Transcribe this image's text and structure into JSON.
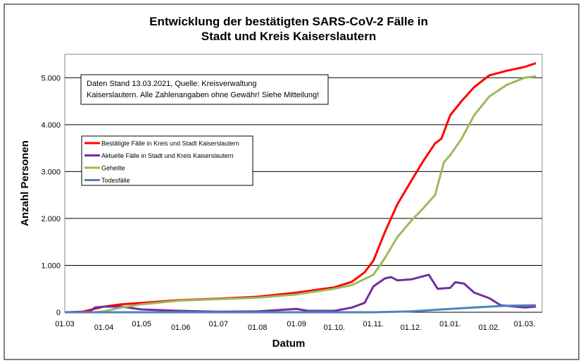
{
  "chart_data": {
    "type": "line",
    "title": [
      "Entwicklung der bestätigten SARS-CoV-2 Fälle in",
      "Stadt und Kreis Kaiserslautern"
    ],
    "xlabel": "Datum",
    "ylabel": "Anzahl Personen",
    "ylim": [
      0,
      5500
    ],
    "xlim": [
      "2020-03-01",
      "2021-03-15"
    ],
    "grid": "horizontal",
    "legend_position": "upper-left",
    "yticks": [
      {
        "v": 0,
        "label": "0"
      },
      {
        "v": 1000,
        "label": "1.000"
      },
      {
        "v": 2000,
        "label": "2.000"
      },
      {
        "v": 3000,
        "label": "3.000"
      },
      {
        "v": 4000,
        "label": "4.000"
      },
      {
        "v": 5000,
        "label": "5.000"
      }
    ],
    "xticks": [
      {
        "d": "2020-03-01",
        "label": "01.03"
      },
      {
        "d": "2020-04-01",
        "label": "01.04"
      },
      {
        "d": "2020-05-01",
        "label": "01.05"
      },
      {
        "d": "2020-06-01",
        "label": "01.06"
      },
      {
        "d": "2020-07-01",
        "label": "01.07"
      },
      {
        "d": "2020-08-01",
        "label": "01.08"
      },
      {
        "d": "2020-09-01",
        "label": "01.09"
      },
      {
        "d": "2020-10-01",
        "label": "01.10."
      },
      {
        "d": "2020-11-01",
        "label": "01.11."
      },
      {
        "d": "2020-12-01",
        "label": "01.12."
      },
      {
        "d": "2021-01-01",
        "label": "01.01."
      },
      {
        "d": "2021-02-01",
        "label": "01.02."
      },
      {
        "d": "2021-03-01",
        "label": "01.03."
      }
    ],
    "annotation": [
      "Daten Stand 13.03.2021, Quelle: Kreisverwaltung",
      "Kaiserslautern. Alle Zahlenangaben ohne Gewähr! Siehe Mitteilung!"
    ],
    "series": [
      {
        "name": "Bestätigte Fälle in Kreis und Stadt Kaiserslautern",
        "color": "#ff0000",
        "points": [
          [
            "2020-03-01",
            0
          ],
          [
            "2020-03-15",
            10
          ],
          [
            "2020-04-01",
            120
          ],
          [
            "2020-04-15",
            170
          ],
          [
            "2020-05-01",
            200
          ],
          [
            "2020-06-01",
            260
          ],
          [
            "2020-07-01",
            290
          ],
          [
            "2020-08-01",
            330
          ],
          [
            "2020-09-01",
            420
          ],
          [
            "2020-10-01",
            530
          ],
          [
            "2020-10-15",
            650
          ],
          [
            "2020-10-25",
            850
          ],
          [
            "2020-11-01",
            1100
          ],
          [
            "2020-11-10",
            1700
          ],
          [
            "2020-11-20",
            2300
          ],
          [
            "2020-12-01",
            2800
          ],
          [
            "2020-12-10",
            3200
          ],
          [
            "2020-12-20",
            3600
          ],
          [
            "2020-12-25",
            3700
          ],
          [
            "2021-01-01",
            4200
          ],
          [
            "2021-01-10",
            4500
          ],
          [
            "2021-01-20",
            4800
          ],
          [
            "2021-02-01",
            5050
          ],
          [
            "2021-02-15",
            5150
          ],
          [
            "2021-03-01",
            5230
          ],
          [
            "2021-03-10",
            5310
          ]
        ]
      },
      {
        "name": "Aktuelle Fälle in Stadt und Kreis Kaiserslautern",
        "color": "#7030a0",
        "points": [
          [
            "2020-03-01",
            0
          ],
          [
            "2020-03-20",
            0
          ],
          [
            "2020-03-25",
            100
          ],
          [
            "2020-04-01",
            120
          ],
          [
            "2020-04-15",
            120
          ],
          [
            "2020-05-01",
            60
          ],
          [
            "2020-06-01",
            30
          ],
          [
            "2020-07-01",
            10
          ],
          [
            "2020-08-01",
            20
          ],
          [
            "2020-09-01",
            70
          ],
          [
            "2020-09-10",
            30
          ],
          [
            "2020-10-01",
            30
          ],
          [
            "2020-10-15",
            100
          ],
          [
            "2020-10-25",
            200
          ],
          [
            "2020-11-01",
            550
          ],
          [
            "2020-11-10",
            720
          ],
          [
            "2020-11-15",
            750
          ],
          [
            "2020-11-20",
            680
          ],
          [
            "2020-12-01",
            700
          ],
          [
            "2020-12-15",
            800
          ],
          [
            "2020-12-22",
            500
          ],
          [
            "2021-01-01",
            520
          ],
          [
            "2021-01-05",
            640
          ],
          [
            "2021-01-12",
            610
          ],
          [
            "2021-01-20",
            420
          ],
          [
            "2021-02-01",
            300
          ],
          [
            "2021-02-10",
            150
          ],
          [
            "2021-03-01",
            100
          ],
          [
            "2021-03-10",
            120
          ]
        ]
      },
      {
        "name": "Geheilte",
        "color": "#9bbb59",
        "points": [
          [
            "2020-03-01",
            0
          ],
          [
            "2020-03-25",
            0
          ],
          [
            "2020-04-01",
            20
          ],
          [
            "2020-04-15",
            100
          ],
          [
            "2020-05-01",
            170
          ],
          [
            "2020-06-01",
            250
          ],
          [
            "2020-07-01",
            280
          ],
          [
            "2020-08-01",
            310
          ],
          [
            "2020-09-01",
            380
          ],
          [
            "2020-10-01",
            500
          ],
          [
            "2020-10-15",
            580
          ],
          [
            "2020-11-01",
            800
          ],
          [
            "2020-11-10",
            1150
          ],
          [
            "2020-11-20",
            1600
          ],
          [
            "2020-12-01",
            1950
          ],
          [
            "2020-12-10",
            2200
          ],
          [
            "2020-12-20",
            2500
          ],
          [
            "2020-12-27",
            3200
          ],
          [
            "2021-01-01",
            3350
          ],
          [
            "2021-01-10",
            3700
          ],
          [
            "2021-01-20",
            4200
          ],
          [
            "2021-02-01",
            4600
          ],
          [
            "2021-02-15",
            4850
          ],
          [
            "2021-03-01",
            5000
          ],
          [
            "2021-03-10",
            5030
          ]
        ]
      },
      {
        "name": "Todesfälle",
        "color": "#4f81bd",
        "points": [
          [
            "2020-03-01",
            0
          ],
          [
            "2020-11-01",
            0
          ],
          [
            "2020-12-01",
            20
          ],
          [
            "2021-01-01",
            70
          ],
          [
            "2021-02-01",
            120
          ],
          [
            "2021-02-15",
            140
          ],
          [
            "2021-03-10",
            150
          ]
        ]
      }
    ]
  }
}
